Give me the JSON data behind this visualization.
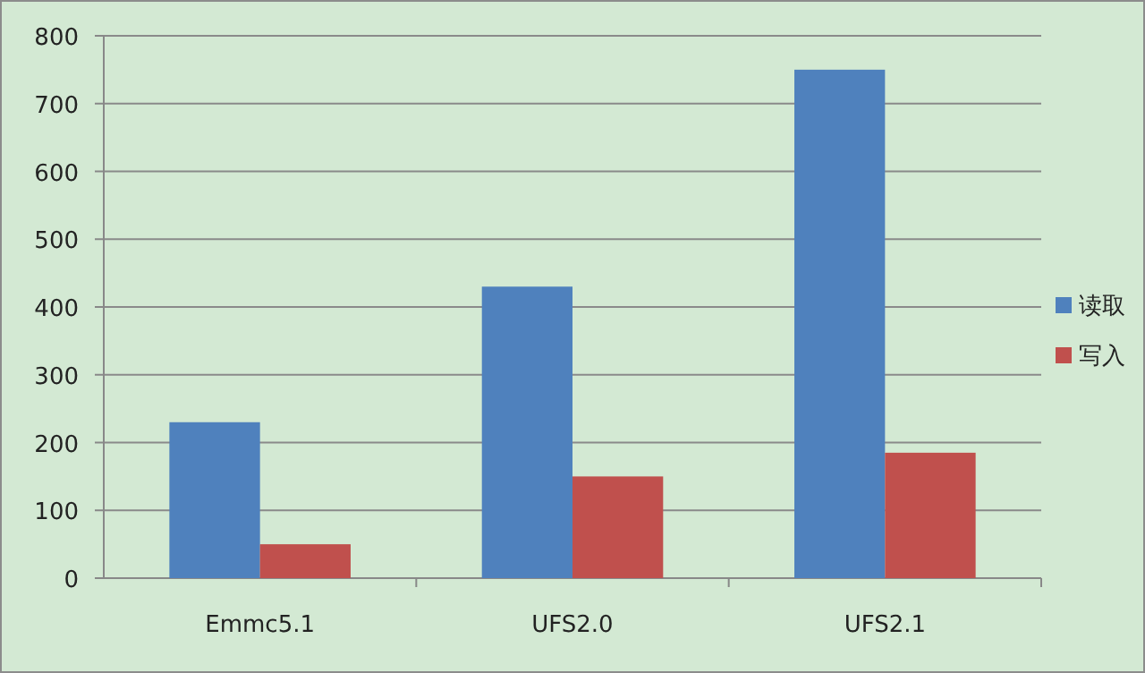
{
  "chart_data": {
    "type": "bar",
    "categories": [
      "Emmc5.1",
      "UFS2.0",
      "UFS2.1"
    ],
    "series": [
      {
        "name": "读取",
        "color": "#4f81bd",
        "values": [
          230,
          430,
          750
        ]
      },
      {
        "name": "写入",
        "color": "#c0504d",
        "values": [
          50,
          150,
          185
        ]
      }
    ],
    "ylim": [
      0,
      800
    ],
    "yticks": [
      0,
      100,
      200,
      300,
      400,
      500,
      600,
      700,
      800
    ],
    "grid": "y",
    "legend": "right"
  }
}
